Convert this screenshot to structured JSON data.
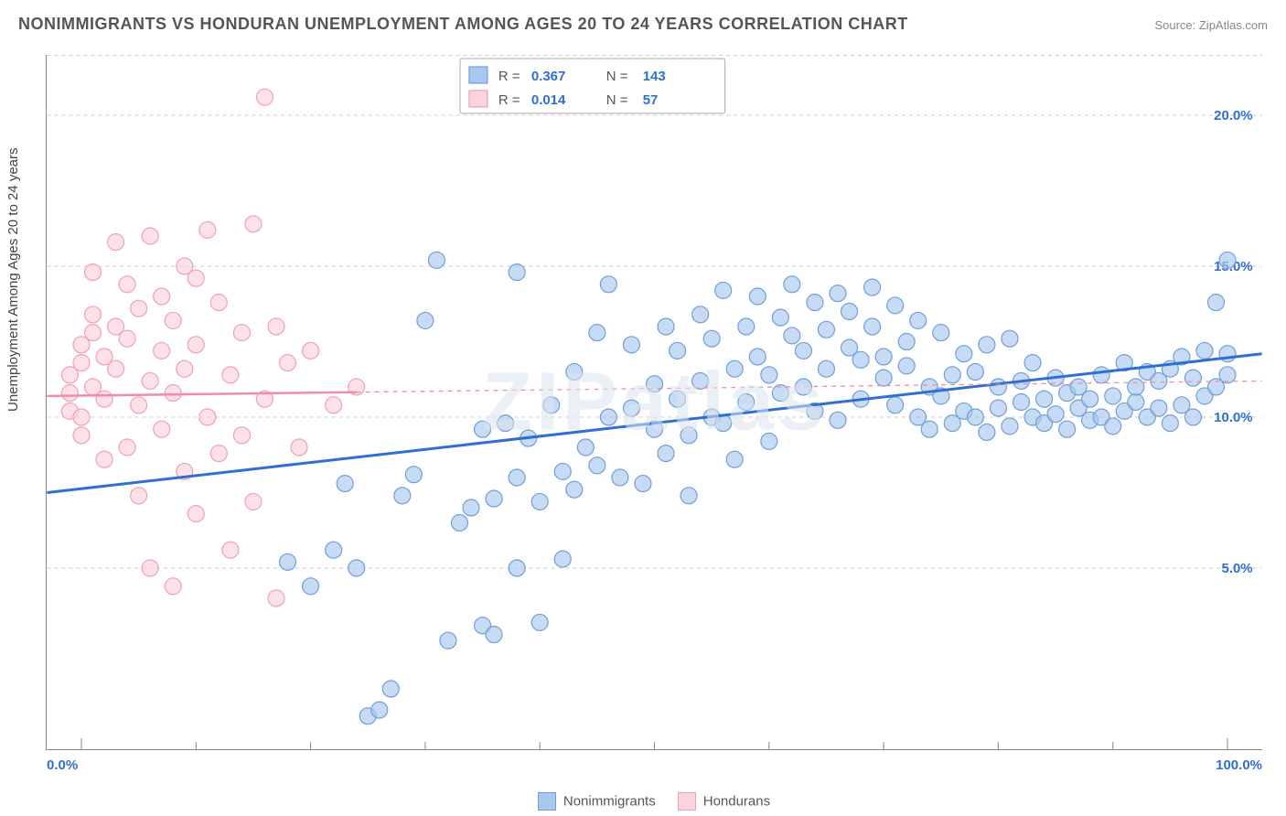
{
  "title": "NONIMMIGRANTS VS HONDURAN UNEMPLOYMENT AMONG AGES 20 TO 24 YEARS CORRELATION CHART",
  "source_prefix": "Source: ",
  "source_name": "ZipAtlas.com",
  "ylabel": "Unemployment Among Ages 20 to 24 years",
  "watermark": "ZIPatlas",
  "chart": {
    "type": "scatter",
    "xlim": [
      -3,
      103
    ],
    "ylim": [
      -1,
      22
    ],
    "x_ticks_major": [
      0,
      100
    ],
    "x_tick_labels": [
      "0.0%",
      "100.0%"
    ],
    "x_ticks_minor": [
      10,
      20,
      30,
      40,
      50,
      60,
      70,
      80,
      90
    ],
    "y_grid": [
      5,
      10,
      15,
      20
    ],
    "y_tick_labels": [
      "5.0%",
      "10.0%",
      "15.0%",
      "20.0%"
    ],
    "background_color": "#ffffff",
    "grid_color": "#cccccc",
    "marker_radius": 9,
    "series": {
      "nonimmigrants": {
        "label": "Nonimmigrants",
        "fill": "#a9c8ef",
        "stroke": "#6f9fd8",
        "R": "0.367",
        "N": "143",
        "trend": {
          "x1": -3,
          "y1": 7.5,
          "x2": 103,
          "y2": 12.1,
          "solid_to_x": 103
        },
        "points": [
          [
            18,
            5.2
          ],
          [
            20,
            4.4
          ],
          [
            22,
            5.6
          ],
          [
            23,
            7.8
          ],
          [
            24,
            5.0
          ],
          [
            25,
            0.1
          ],
          [
            26,
            0.3
          ],
          [
            27,
            1.0
          ],
          [
            28,
            7.4
          ],
          [
            29,
            8.1
          ],
          [
            30,
            13.2
          ],
          [
            31,
            15.2
          ],
          [
            32,
            2.6
          ],
          [
            33,
            6.5
          ],
          [
            34,
            7.0
          ],
          [
            35,
            3.1
          ],
          [
            35,
            9.6
          ],
          [
            36,
            7.3
          ],
          [
            36,
            2.8
          ],
          [
            37,
            9.8
          ],
          [
            38,
            5.0
          ],
          [
            38,
            8.0
          ],
          [
            38,
            14.8
          ],
          [
            39,
            9.3
          ],
          [
            40,
            3.2
          ],
          [
            40,
            7.2
          ],
          [
            41,
            10.4
          ],
          [
            42,
            8.2
          ],
          [
            42,
            5.3
          ],
          [
            43,
            11.5
          ],
          [
            43,
            7.6
          ],
          [
            44,
            9.0
          ],
          [
            45,
            12.8
          ],
          [
            45,
            8.4
          ],
          [
            46,
            10.0
          ],
          [
            46,
            14.4
          ],
          [
            47,
            8.0
          ],
          [
            48,
            12.4
          ],
          [
            48,
            10.3
          ],
          [
            49,
            7.8
          ],
          [
            50,
            9.6
          ],
          [
            50,
            11.1
          ],
          [
            51,
            8.8
          ],
          [
            51,
            13.0
          ],
          [
            52,
            10.6
          ],
          [
            52,
            12.2
          ],
          [
            53,
            9.4
          ],
          [
            53,
            7.4
          ],
          [
            54,
            11.2
          ],
          [
            54,
            13.4
          ],
          [
            55,
            10.0
          ],
          [
            55,
            12.6
          ],
          [
            56,
            14.2
          ],
          [
            56,
            9.8
          ],
          [
            57,
            11.6
          ],
          [
            57,
            8.6
          ],
          [
            58,
            13.0
          ],
          [
            58,
            10.5
          ],
          [
            59,
            12.0
          ],
          [
            59,
            14.0
          ],
          [
            60,
            11.4
          ],
          [
            60,
            9.2
          ],
          [
            61,
            13.3
          ],
          [
            61,
            10.8
          ],
          [
            62,
            12.7
          ],
          [
            62,
            14.4
          ],
          [
            63,
            11.0
          ],
          [
            63,
            12.2
          ],
          [
            64,
            13.8
          ],
          [
            64,
            10.2
          ],
          [
            65,
            11.6
          ],
          [
            65,
            12.9
          ],
          [
            66,
            14.1
          ],
          [
            66,
            9.9
          ],
          [
            67,
            12.3
          ],
          [
            67,
            13.5
          ],
          [
            68,
            10.6
          ],
          [
            68,
            11.9
          ],
          [
            69,
            13.0
          ],
          [
            69,
            14.3
          ],
          [
            70,
            11.3
          ],
          [
            70,
            12.0
          ],
          [
            71,
            10.4
          ],
          [
            71,
            13.7
          ],
          [
            72,
            11.7
          ],
          [
            72,
            12.5
          ],
          [
            73,
            10.0
          ],
          [
            73,
            13.2
          ],
          [
            74,
            11.0
          ],
          [
            74,
            9.6
          ],
          [
            75,
            12.8
          ],
          [
            75,
            10.7
          ],
          [
            76,
            11.4
          ],
          [
            76,
            9.8
          ],
          [
            77,
            10.2
          ],
          [
            77,
            12.1
          ],
          [
            78,
            11.5
          ],
          [
            78,
            10.0
          ],
          [
            79,
            12.4
          ],
          [
            79,
            9.5
          ],
          [
            80,
            11.0
          ],
          [
            80,
            10.3
          ],
          [
            81,
            12.6
          ],
          [
            81,
            9.7
          ],
          [
            82,
            11.2
          ],
          [
            82,
            10.5
          ],
          [
            83,
            10.0
          ],
          [
            83,
            11.8
          ],
          [
            84,
            10.6
          ],
          [
            84,
            9.8
          ],
          [
            85,
            11.3
          ],
          [
            85,
            10.1
          ],
          [
            86,
            10.8
          ],
          [
            86,
            9.6
          ],
          [
            87,
            11.0
          ],
          [
            87,
            10.3
          ],
          [
            88,
            10.6
          ],
          [
            88,
            9.9
          ],
          [
            89,
            11.4
          ],
          [
            89,
            10.0
          ],
          [
            90,
            10.7
          ],
          [
            90,
            9.7
          ],
          [
            91,
            11.8
          ],
          [
            91,
            10.2
          ],
          [
            92,
            10.5
          ],
          [
            92,
            11.0
          ],
          [
            93,
            10.0
          ],
          [
            93,
            11.5
          ],
          [
            94,
            10.3
          ],
          [
            94,
            11.2
          ],
          [
            95,
            9.8
          ],
          [
            95,
            11.6
          ],
          [
            96,
            10.4
          ],
          [
            96,
            12.0
          ],
          [
            97,
            10.0
          ],
          [
            97,
            11.3
          ],
          [
            98,
            10.7
          ],
          [
            98,
            12.2
          ],
          [
            99,
            13.8
          ],
          [
            99,
            11.0
          ],
          [
            100,
            15.2
          ],
          [
            100,
            12.1
          ],
          [
            100,
            11.4
          ]
        ]
      },
      "hondurans": {
        "label": "Hondurans",
        "fill": "#fbd3dc",
        "stroke": "#f29fb2",
        "R": "0.014",
        "N": "57",
        "trend": {
          "x1": -3,
          "y1": 10.7,
          "x2": 103,
          "y2": 11.2,
          "solid_to_x": 24
        },
        "points": [
          [
            -1,
            10.8
          ],
          [
            -1,
            11.4
          ],
          [
            -1,
            10.2
          ],
          [
            0,
            11.8
          ],
          [
            0,
            12.4
          ],
          [
            0,
            10.0
          ],
          [
            0,
            9.4
          ],
          [
            1,
            12.8
          ],
          [
            1,
            11.0
          ],
          [
            1,
            13.4
          ],
          [
            1,
            14.8
          ],
          [
            2,
            10.6
          ],
          [
            2,
            12.0
          ],
          [
            2,
            8.6
          ],
          [
            3,
            11.6
          ],
          [
            3,
            13.0
          ],
          [
            3,
            15.8
          ],
          [
            4,
            9.0
          ],
          [
            4,
            12.6
          ],
          [
            4,
            14.4
          ],
          [
            5,
            10.4
          ],
          [
            5,
            7.4
          ],
          [
            5,
            13.6
          ],
          [
            6,
            11.2
          ],
          [
            6,
            16.0
          ],
          [
            6,
            5.0
          ],
          [
            7,
            12.2
          ],
          [
            7,
            9.6
          ],
          [
            7,
            14.0
          ],
          [
            8,
            10.8
          ],
          [
            8,
            4.4
          ],
          [
            8,
            13.2
          ],
          [
            9,
            11.6
          ],
          [
            9,
            8.2
          ],
          [
            9,
            15.0
          ],
          [
            10,
            6.8
          ],
          [
            10,
            12.4
          ],
          [
            10,
            14.6
          ],
          [
            11,
            10.0
          ],
          [
            11,
            16.2
          ],
          [
            12,
            8.8
          ],
          [
            12,
            13.8
          ],
          [
            13,
            11.4
          ],
          [
            13,
            5.6
          ],
          [
            14,
            9.4
          ],
          [
            14,
            12.8
          ],
          [
            15,
            16.4
          ],
          [
            15,
            7.2
          ],
          [
            16,
            20.6
          ],
          [
            16,
            10.6
          ],
          [
            17,
            13.0
          ],
          [
            17,
            4.0
          ],
          [
            18,
            11.8
          ],
          [
            19,
            9.0
          ],
          [
            20,
            12.2
          ],
          [
            22,
            10.4
          ],
          [
            24,
            11.0
          ]
        ]
      }
    }
  },
  "legend_stats": {
    "rows": [
      {
        "swatch_fill": "#a9c8ef",
        "swatch_stroke": "#6f9fd8",
        "R_label": "R =",
        "R": "0.367",
        "N_label": "N =",
        "N": "143"
      },
      {
        "swatch_fill": "#fbd3dc",
        "swatch_stroke": "#f29fb2",
        "R_label": "R =",
        "R": "0.014",
        "N_label": "N =",
        "N": "57"
      }
    ]
  },
  "bottom_legend": [
    {
      "fill": "#a9c8ef",
      "stroke": "#6f9fd8",
      "label": "Nonimmigrants"
    },
    {
      "fill": "#fbd3dc",
      "stroke": "#f29fb2",
      "label": "Hondurans"
    }
  ]
}
